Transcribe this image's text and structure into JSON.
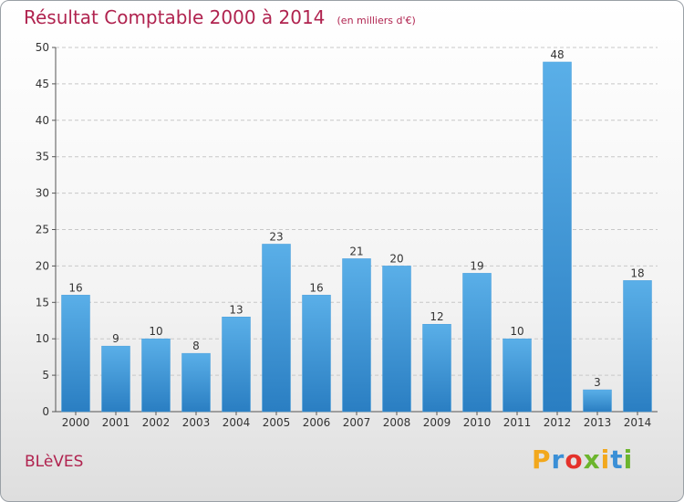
{
  "header": {
    "title": "Résultat Comptable 2000 à 2014",
    "unit": "(en milliers d'€)"
  },
  "footer": {
    "commune": "BLèVES",
    "logo_letters": [
      "P",
      "r",
      "o",
      "x",
      "i",
      "t",
      "i"
    ],
    "logo_colors": [
      "#f2a81d",
      "#3a8fd6",
      "#e4322b",
      "#6cb52d",
      "#f2a81d",
      "#3a8fd6",
      "#6cb52d"
    ]
  },
  "colors": {
    "bar_top": "#5aafe8",
    "bar_bottom": "#2a7ec2",
    "title": "#b0234f"
  },
  "chart_data": {
    "type": "bar",
    "title": "Résultat Comptable 2000 à 2014",
    "xlabel": "",
    "ylabel": "",
    "categories": [
      "2000",
      "2001",
      "2002",
      "2003",
      "2004",
      "2005",
      "2006",
      "2007",
      "2008",
      "2009",
      "2010",
      "2011",
      "2012",
      "2013",
      "2014"
    ],
    "values": [
      16,
      9,
      10,
      8,
      13,
      23,
      16,
      21,
      20,
      12,
      19,
      10,
      48,
      3,
      18
    ],
    "ylim": [
      0,
      50
    ],
    "yticks": [
      0,
      5,
      10,
      15,
      20,
      25,
      30,
      35,
      40,
      45,
      50
    ],
    "grid": true,
    "data_labels": true
  }
}
